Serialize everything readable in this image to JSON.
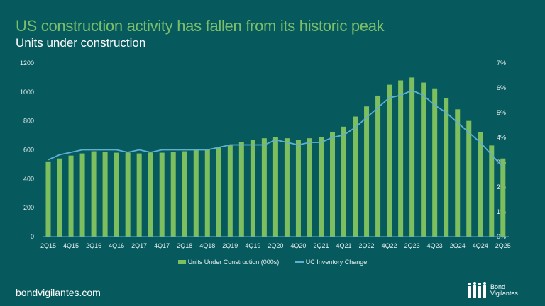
{
  "title": "US construction activity has fallen from its historic peak",
  "subtitle": "Units under construction",
  "footer": "bondvigilantes.com",
  "logo_text": [
    "Bond",
    "Vigilantes"
  ],
  "colors": {
    "background": "#065a5e",
    "bars": "#7dbf5f",
    "line": "#5fb0d0",
    "title": "#7cbf6b"
  },
  "chart_data": {
    "type": "bar+line",
    "categories": [
      "2Q15",
      "3Q15",
      "4Q15",
      "1Q16",
      "2Q16",
      "3Q16",
      "4Q16",
      "1Q17",
      "2Q17",
      "3Q17",
      "4Q17",
      "1Q18",
      "2Q18",
      "3Q18",
      "4Q18",
      "1Q19",
      "2Q19",
      "3Q19",
      "4Q19",
      "1Q20",
      "2Q20",
      "3Q20",
      "4Q20",
      "1Q21",
      "2Q21",
      "3Q21",
      "4Q21",
      "1Q22",
      "2Q22",
      "3Q22",
      "4Q22",
      "1Q23",
      "2Q23",
      "3Q23",
      "4Q23",
      "1Q24",
      "2Q24",
      "3Q24",
      "4Q24",
      "1Q25",
      "2Q25"
    ],
    "x_tick_labels": [
      "2Q15",
      "4Q15",
      "2Q16",
      "4Q16",
      "2Q17",
      "4Q17",
      "2Q18",
      "4Q18",
      "2Q19",
      "4Q19",
      "2Q20",
      "4Q20",
      "2Q21",
      "4Q21",
      "2Q22",
      "4Q22",
      "2Q23",
      "4Q23",
      "2Q24",
      "4Q24",
      "2Q25"
    ],
    "series": [
      {
        "name": "Units Under Construction (000s)",
        "type": "bar",
        "axis": "left",
        "values": [
          520,
          540,
          560,
          575,
          590,
          585,
          580,
          580,
          575,
          580,
          580,
          585,
          590,
          600,
          600,
          615,
          635,
          655,
          670,
          680,
          690,
          680,
          670,
          680,
          690,
          725,
          760,
          830,
          900,
          975,
          1050,
          1080,
          1100,
          1065,
          1025,
          955,
          880,
          800,
          720,
          630,
          540
        ]
      },
      {
        "name": "UC Inventory Change",
        "type": "line",
        "axis": "right",
        "values": [
          3.1,
          3.3,
          3.4,
          3.5,
          3.5,
          3.5,
          3.5,
          3.4,
          3.5,
          3.4,
          3.5,
          3.5,
          3.5,
          3.5,
          3.5,
          3.6,
          3.7,
          3.7,
          3.7,
          3.7,
          3.9,
          3.8,
          3.7,
          3.8,
          3.8,
          4.0,
          4.1,
          4.4,
          4.8,
          5.2,
          5.6,
          5.7,
          5.9,
          5.7,
          5.3,
          5.0,
          4.6,
          4.2,
          3.8,
          3.3,
          2.8
        ]
      }
    ],
    "y_left": {
      "ylim": [
        0,
        1200
      ],
      "ticks": [
        "0",
        "200",
        "400",
        "600",
        "800",
        "1000",
        "1200"
      ]
    },
    "y_right": {
      "ylim": [
        0,
        7
      ],
      "ticks": [
        "0%",
        "1%",
        "2%",
        "3%",
        "4%",
        "5%",
        "6%",
        "7%"
      ]
    },
    "legend_position": "bottom",
    "grid": false
  }
}
